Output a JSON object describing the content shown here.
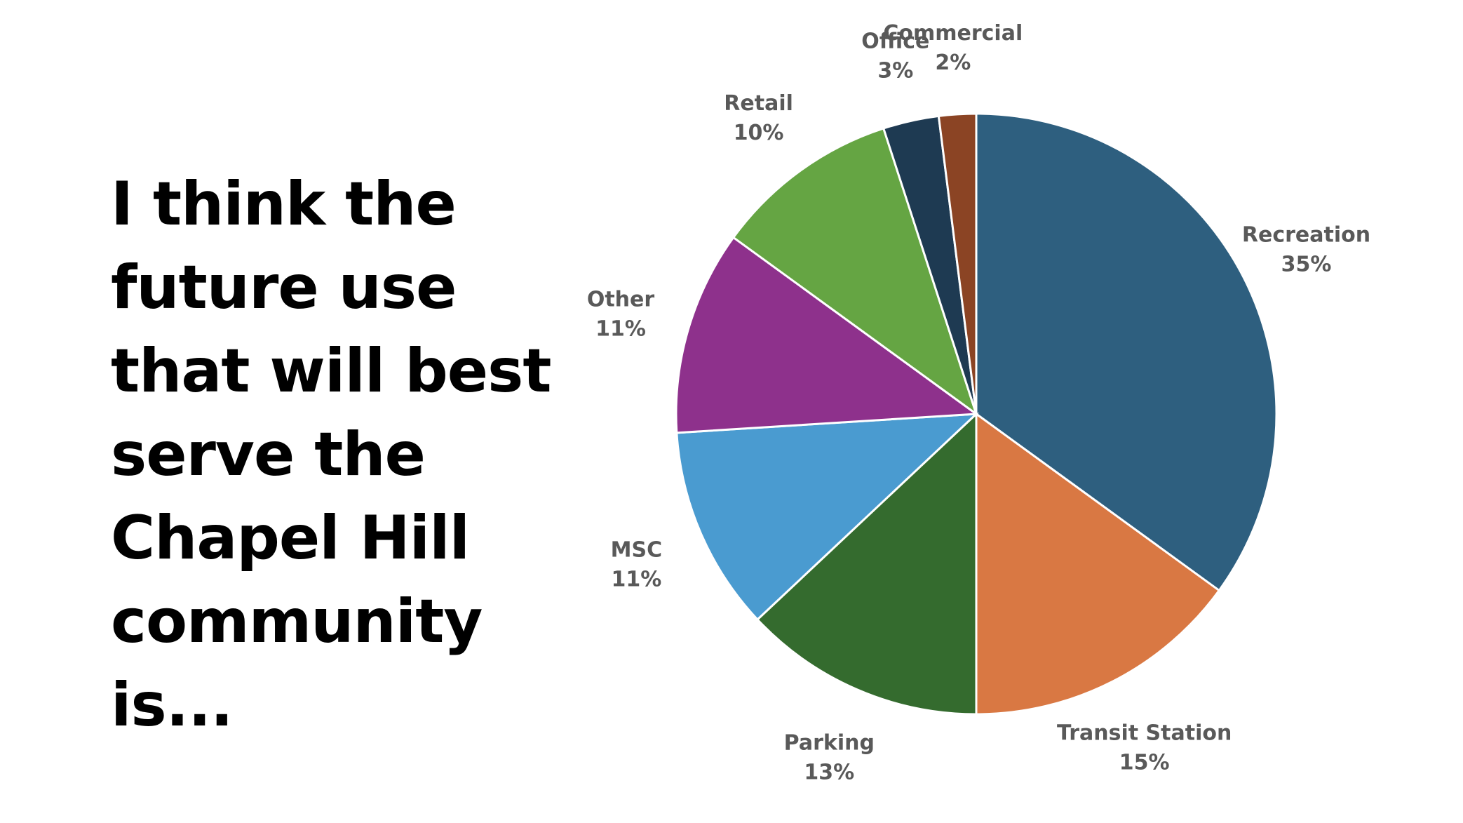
{
  "slide": {
    "title": "I think the future use that will best serve the Chapel Hill community is..."
  },
  "chart_data": {
    "type": "pie",
    "title": "",
    "slices": [
      {
        "label": "Recreation",
        "value": 35,
        "display": "35%",
        "color": "#2e5f7f"
      },
      {
        "label": "Transit Station",
        "value": 15,
        "display": "15%",
        "color": "#d97843"
      },
      {
        "label": "Parking",
        "value": 13,
        "display": "13%",
        "color": "#346b2e"
      },
      {
        "label": "MSC",
        "value": 11,
        "display": "11%",
        "color": "#4a9bd0"
      },
      {
        "label": "Other",
        "value": 11,
        "display": "11%",
        "color": "#8e318c"
      },
      {
        "label": "Retail",
        "value": 10,
        "display": "10%",
        "color": "#65a543"
      },
      {
        "label": "Office",
        "value": 3,
        "display": "3%",
        "color": "#1e3a52"
      },
      {
        "label": "Commercial",
        "value": 2,
        "display": "2%",
        "color": "#8b4424"
      }
    ],
    "legend": "none",
    "data_labels": "outside"
  }
}
